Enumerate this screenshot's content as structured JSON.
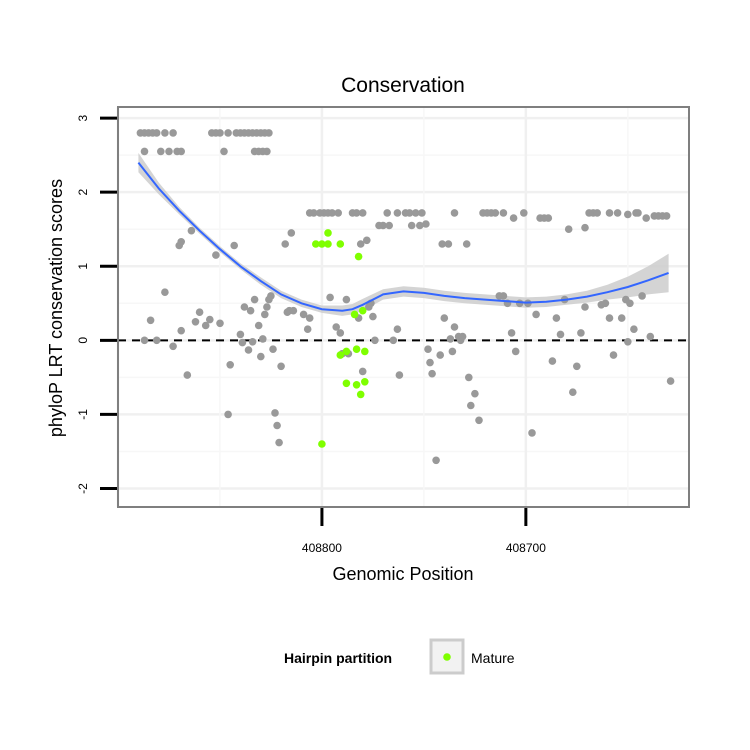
{
  "chart_data": {
    "type": "scatter",
    "title": "Conservation",
    "xlabel": "Genomic Position",
    "ylabel": "phyloP LRT conservation scores",
    "xlim": [
      408620,
      408900
    ],
    "x_reversed": true,
    "ylim": [
      -2.25,
      3.15
    ],
    "x_ticks": [
      408800,
      408700
    ],
    "y_ticks": [
      -2,
      -1,
      0,
      1,
      2,
      3
    ],
    "reference_line": {
      "y": 0,
      "style": "dashed"
    },
    "grid": true,
    "legend": {
      "position": "bottom",
      "title": "Hairpin partition",
      "entries": [
        {
          "label": "Mature",
          "color": "#7fff00"
        }
      ]
    },
    "colors": {
      "other": "#999999",
      "mature": "#7fff00",
      "smooth": "#3366ff",
      "ribbon": "#cccccc",
      "panel_border": "#7f7f7f"
    },
    "series": [
      {
        "name": "",
        "color": "#999999",
        "points": [
          [
            408889,
            2.8
          ],
          [
            408887,
            2.8
          ],
          [
            408885,
            2.8
          ],
          [
            408883,
            2.8
          ],
          [
            408881,
            2.8
          ],
          [
            408877,
            2.8
          ],
          [
            408873,
            2.8
          ],
          [
            408887,
            2.55
          ],
          [
            408879,
            2.55
          ],
          [
            408875,
            2.55
          ],
          [
            408871,
            2.55
          ],
          [
            408869,
            2.55
          ],
          [
            408854,
            2.8
          ],
          [
            408852,
            2.8
          ],
          [
            408850,
            2.8
          ],
          [
            408846,
            2.8
          ],
          [
            408842,
            2.8
          ],
          [
            408840,
            2.8
          ],
          [
            408838,
            2.8
          ],
          [
            408836,
            2.8
          ],
          [
            408834,
            2.8
          ],
          [
            408832,
            2.8
          ],
          [
            408830,
            2.8
          ],
          [
            408828,
            2.8
          ],
          [
            408826,
            2.8
          ],
          [
            408848,
            2.55
          ],
          [
            408833,
            2.55
          ],
          [
            408831,
            2.55
          ],
          [
            408829,
            2.55
          ],
          [
            408827,
            2.55
          ],
          [
            408887,
            0.0
          ],
          [
            408884,
            0.27
          ],
          [
            408881,
            0.0
          ],
          [
            408877,
            0.65
          ],
          [
            408873,
            -0.08
          ],
          [
            408870,
            1.28
          ],
          [
            408869,
            1.33
          ],
          [
            408869,
            0.13
          ],
          [
            408866,
            -0.47
          ],
          [
            408864,
            1.48
          ],
          [
            408862,
            0.25
          ],
          [
            408860,
            0.38
          ],
          [
            408857,
            0.2
          ],
          [
            408855,
            0.28
          ],
          [
            408852,
            1.15
          ],
          [
            408850,
            0.23
          ],
          [
            408846,
            -1.0
          ],
          [
            408845,
            -0.33
          ],
          [
            408843,
            1.28
          ],
          [
            408840,
            0.08
          ],
          [
            408839,
            -0.03
          ],
          [
            408838,
            0.45
          ],
          [
            408836,
            -0.13
          ],
          [
            408835,
            0.4
          ],
          [
            408834,
            -0.02
          ],
          [
            408833,
            0.55
          ],
          [
            408831,
            0.2
          ],
          [
            408830,
            -0.22
          ],
          [
            408829,
            0.02
          ],
          [
            408828,
            0.35
          ],
          [
            408827,
            0.45
          ],
          [
            408826,
            0.55
          ],
          [
            408825,
            0.6
          ],
          [
            408824,
            -0.12
          ],
          [
            408823,
            -0.98
          ],
          [
            408822,
            -1.15
          ],
          [
            408821,
            -1.38
          ],
          [
            408820,
            -0.35
          ],
          [
            408818,
            1.3
          ],
          [
            408817,
            0.38
          ],
          [
            408816,
            0.4
          ],
          [
            408815,
            1.45
          ],
          [
            408814,
            0.4
          ],
          [
            408809,
            0.35
          ],
          [
            408807,
            0.15
          ],
          [
            408806,
            0.3
          ],
          [
            408799,
            1.72
          ],
          [
            408797,
            1.72
          ],
          [
            408795,
            1.72
          ],
          [
            408793,
            0.18
          ],
          [
            408792,
            1.72
          ],
          [
            408791,
            0.1
          ],
          [
            408790,
            -0.18
          ],
          [
            408788,
            0.55
          ],
          [
            408787,
            -0.18
          ],
          [
            408785,
            1.72
          ],
          [
            408783,
            1.72
          ],
          [
            408782,
            0.3
          ],
          [
            408781,
            1.3
          ],
          [
            408780,
            -0.42
          ],
          [
            408778,
            1.35
          ],
          [
            408777,
            0.45
          ],
          [
            408776,
            0.5
          ],
          [
            408775,
            0.32
          ],
          [
            408774,
            0.0
          ],
          [
            408772,
            1.55
          ],
          [
            408770,
            1.55
          ],
          [
            408768,
            1.72
          ],
          [
            408767,
            1.55
          ],
          [
            408765,
            0.0
          ],
          [
            408763,
            0.15
          ],
          [
            408762,
            -0.47
          ],
          [
            408759,
            1.72
          ],
          [
            408757,
            1.72
          ],
          [
            408756,
            1.55
          ],
          [
            408754,
            1.72
          ],
          [
            408752,
            1.55
          ],
          [
            408751,
            1.72
          ],
          [
            408749,
            1.57
          ],
          [
            408748,
            -0.12
          ],
          [
            408747,
            -0.3
          ],
          [
            408746,
            -0.45
          ],
          [
            408744,
            -1.62
          ],
          [
            408742,
            -0.2
          ],
          [
            408741,
            1.3
          ],
          [
            408740,
            0.3
          ],
          [
            408738,
            1.3
          ],
          [
            408737,
            0.02
          ],
          [
            408736,
            -0.15
          ],
          [
            408735,
            0.18
          ],
          [
            408733,
            0.05
          ],
          [
            408732,
            0.0
          ],
          [
            408731,
            0.05
          ],
          [
            408729,
            1.3
          ],
          [
            408728,
            -0.5
          ],
          [
            408727,
            -0.88
          ],
          [
            408725,
            -0.72
          ],
          [
            408723,
            -1.08
          ],
          [
            408721,
            1.72
          ],
          [
            408719,
            1.72
          ],
          [
            408717,
            1.72
          ],
          [
            408715,
            1.72
          ],
          [
            408713,
            0.6
          ],
          [
            408711,
            0.6
          ],
          [
            408709,
            0.5
          ],
          [
            408707,
            0.1
          ],
          [
            408705,
            -0.15
          ],
          [
            408703,
            0.5
          ],
          [
            408701,
            1.72
          ],
          [
            408699,
            0.5
          ],
          [
            408697,
            -1.25
          ],
          [
            408695,
            0.35
          ],
          [
            408693,
            1.65
          ],
          [
            408691,
            1.65
          ],
          [
            408689,
            1.65
          ],
          [
            408687,
            -0.28
          ],
          [
            408685,
            0.3
          ],
          [
            408683,
            0.08
          ],
          [
            408681,
            0.55
          ],
          [
            408679,
            1.5
          ],
          [
            408677,
            -0.7
          ],
          [
            408675,
            -0.35
          ],
          [
            408673,
            0.1
          ],
          [
            408671,
            0.45
          ],
          [
            408669,
            1.72
          ],
          [
            408667,
            1.72
          ],
          [
            408665,
            1.72
          ],
          [
            408663,
            0.48
          ],
          [
            408661,
            0.5
          ],
          [
            408659,
            0.3
          ],
          [
            408657,
            -0.2
          ],
          [
            408655,
            1.72
          ],
          [
            408653,
            0.3
          ],
          [
            408651,
            0.55
          ],
          [
            408650,
            -0.02
          ],
          [
            408649,
            0.5
          ],
          [
            408647,
            0.15
          ],
          [
            408645,
            1.72
          ],
          [
            408643,
            0.6
          ],
          [
            408641,
            1.65
          ],
          [
            408639,
            0.05
          ],
          [
            408637,
            1.68
          ],
          [
            408635,
            1.68
          ],
          [
            408633,
            1.68
          ],
          [
            408631,
            1.68
          ],
          [
            408629,
            -0.55
          ],
          [
            408806,
            1.72
          ],
          [
            408804,
            1.72
          ],
          [
            408801,
            1.72
          ],
          [
            408796,
            0.58
          ],
          [
            408780,
            1.72
          ],
          [
            408763,
            1.72
          ],
          [
            408735,
            1.72
          ],
          [
            408711,
            1.72
          ],
          [
            408706,
            1.65
          ],
          [
            408671,
            1.52
          ],
          [
            408659,
            1.72
          ],
          [
            408650,
            1.7
          ],
          [
            408646,
            1.72
          ]
        ]
      },
      {
        "name": "Mature",
        "color": "#7fff00",
        "points": [
          [
            408803,
            1.3
          ],
          [
            408800,
            1.3
          ],
          [
            408797,
            1.45
          ],
          [
            408797,
            1.3
          ],
          [
            408791,
            1.3
          ],
          [
            408782,
            1.13
          ],
          [
            408784,
            0.35
          ],
          [
            408780,
            0.4
          ],
          [
            408791,
            -0.2
          ],
          [
            408788,
            -0.15
          ],
          [
            408783,
            -0.12
          ],
          [
            408779,
            -0.15
          ],
          [
            408788,
            -0.58
          ],
          [
            408783,
            -0.6
          ],
          [
            408779,
            -0.56
          ],
          [
            408781,
            -0.73
          ],
          [
            408800,
            -1.4
          ]
        ]
      }
    ],
    "smooth_line": {
      "x": [
        408890,
        408880,
        408870,
        408860,
        408850,
        408840,
        408830,
        408820,
        408810,
        408800,
        408790,
        408785,
        408780,
        408770,
        408760,
        408750,
        408740,
        408730,
        408720,
        408710,
        408700,
        408690,
        408680,
        408670,
        408660,
        408650,
        408640,
        408630
      ],
      "y": [
        2.4,
        2.05,
        1.75,
        1.48,
        1.23,
        1.0,
        0.8,
        0.62,
        0.5,
        0.42,
        0.4,
        0.42,
        0.48,
        0.62,
        0.66,
        0.64,
        0.6,
        0.57,
        0.55,
        0.53,
        0.51,
        0.52,
        0.55,
        0.59,
        0.65,
        0.72,
        0.81,
        0.91
      ],
      "ymin": [
        2.27,
        1.97,
        1.7,
        1.44,
        1.19,
        0.96,
        0.75,
        0.57,
        0.45,
        0.37,
        0.33,
        0.35,
        0.4,
        0.55,
        0.59,
        0.57,
        0.53,
        0.5,
        0.48,
        0.46,
        0.44,
        0.45,
        0.48,
        0.51,
        0.55,
        0.58,
        0.62,
        0.65
      ],
      "ymax": [
        2.53,
        2.13,
        1.8,
        1.52,
        1.27,
        1.04,
        0.85,
        0.67,
        0.55,
        0.47,
        0.47,
        0.49,
        0.56,
        0.69,
        0.73,
        0.71,
        0.67,
        0.64,
        0.62,
        0.6,
        0.58,
        0.59,
        0.62,
        0.67,
        0.75,
        0.86,
        1.0,
        1.17
      ]
    }
  }
}
